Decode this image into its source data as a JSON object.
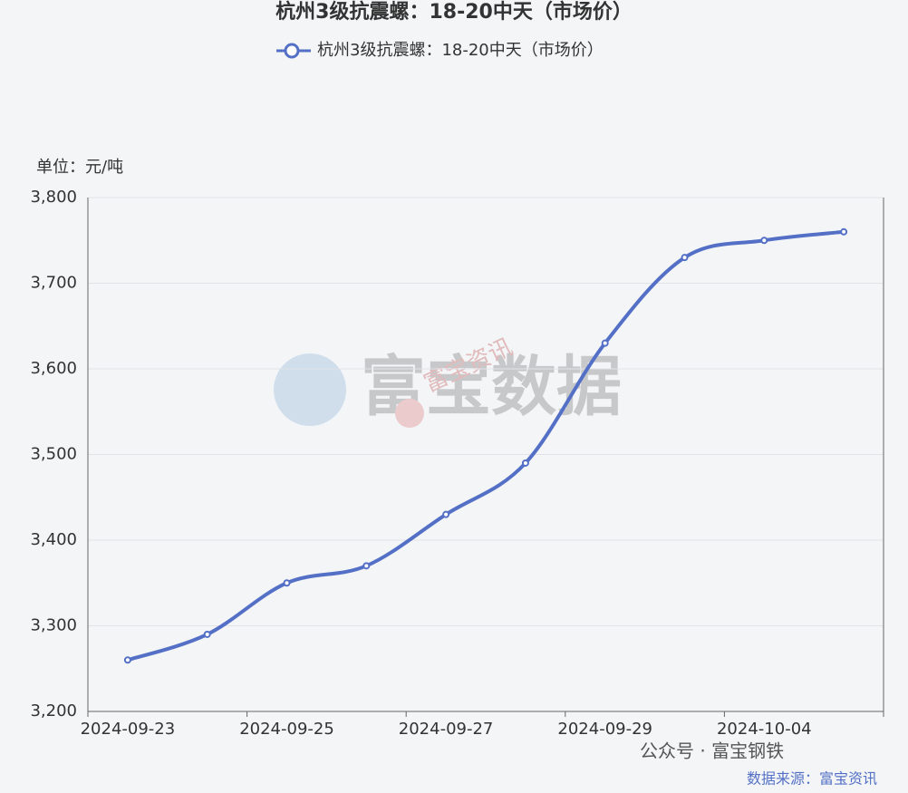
{
  "chart_data": {
    "type": "line",
    "title": "杭州3级抗震螺：18-20中天（市场价）",
    "y_axis_label": "单位：元/吨",
    "categories": [
      "2024-09-23",
      null,
      "2024-09-25",
      null,
      "2024-09-27",
      null,
      "2024-09-29",
      null,
      "2024-10-04",
      null
    ],
    "series": [
      {
        "name": "杭州3级抗震螺：18-20中天（市场价）",
        "color": "#5470c6",
        "values": [
          3260,
          3290,
          3350,
          3370,
          3430,
          3490,
          3630,
          3730,
          3750,
          3760
        ]
      }
    ],
    "ylim": [
      3200,
      3800
    ],
    "yticks": [
      {
        "value": 3200,
        "label": "3,200"
      },
      {
        "value": 3300,
        "label": "3,300"
      },
      {
        "value": 3400,
        "label": "3,400"
      },
      {
        "value": 3500,
        "label": "3,500"
      },
      {
        "value": 3600,
        "label": "3,600"
      },
      {
        "value": 3700,
        "label": "3,700"
      },
      {
        "value": 3800,
        "label": "3,800"
      }
    ],
    "grid": true,
    "smooth": true,
    "legend": "top"
  },
  "watermark": {
    "main": "富宝数据",
    "sub": "富宝资讯"
  },
  "footer": {
    "account": "公众号 · 富宝钢铁",
    "source": "数据来源：富宝资讯"
  }
}
